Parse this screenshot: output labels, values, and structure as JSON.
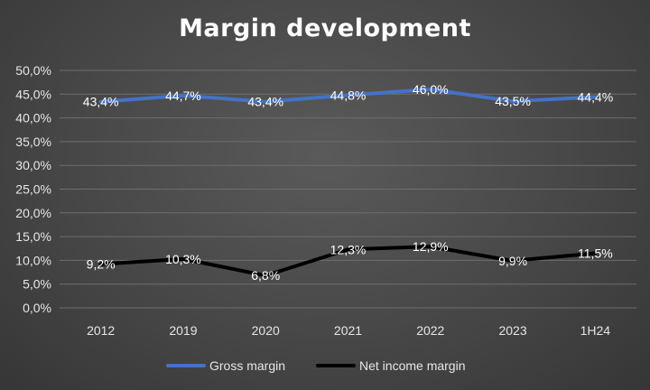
{
  "chart_data": {
    "type": "line",
    "title": "Margin development",
    "categories": [
      "2012",
      "2019",
      "2020",
      "2021",
      "2022",
      "2023",
      "1H24"
    ],
    "series": [
      {
        "name": "Gross margin",
        "color": "#4472c4",
        "values": [
          43.4,
          44.7,
          43.4,
          44.8,
          46.0,
          43.5,
          44.4
        ],
        "labels": [
          "43,4%",
          "44,7%",
          "43,4%",
          "44,8%",
          "46,0%",
          "43,5%",
          "44,4%"
        ]
      },
      {
        "name": "Net income margin",
        "color": "#000000",
        "values": [
          9.2,
          10.3,
          6.8,
          12.3,
          12.9,
          9.9,
          11.5
        ],
        "labels": [
          "9,2%",
          "10,3%",
          "6,8%",
          "12,3%",
          "12,9%",
          "9,9%",
          "11,5%"
        ]
      }
    ],
    "ylim": [
      0,
      50
    ],
    "yticks": [
      "0,0%",
      "5,0%",
      "10,0%",
      "15,0%",
      "20,0%",
      "25,0%",
      "30,0%",
      "35,0%",
      "40,0%",
      "45,0%",
      "50,0%"
    ],
    "grid": true,
    "legend": "bottom"
  }
}
